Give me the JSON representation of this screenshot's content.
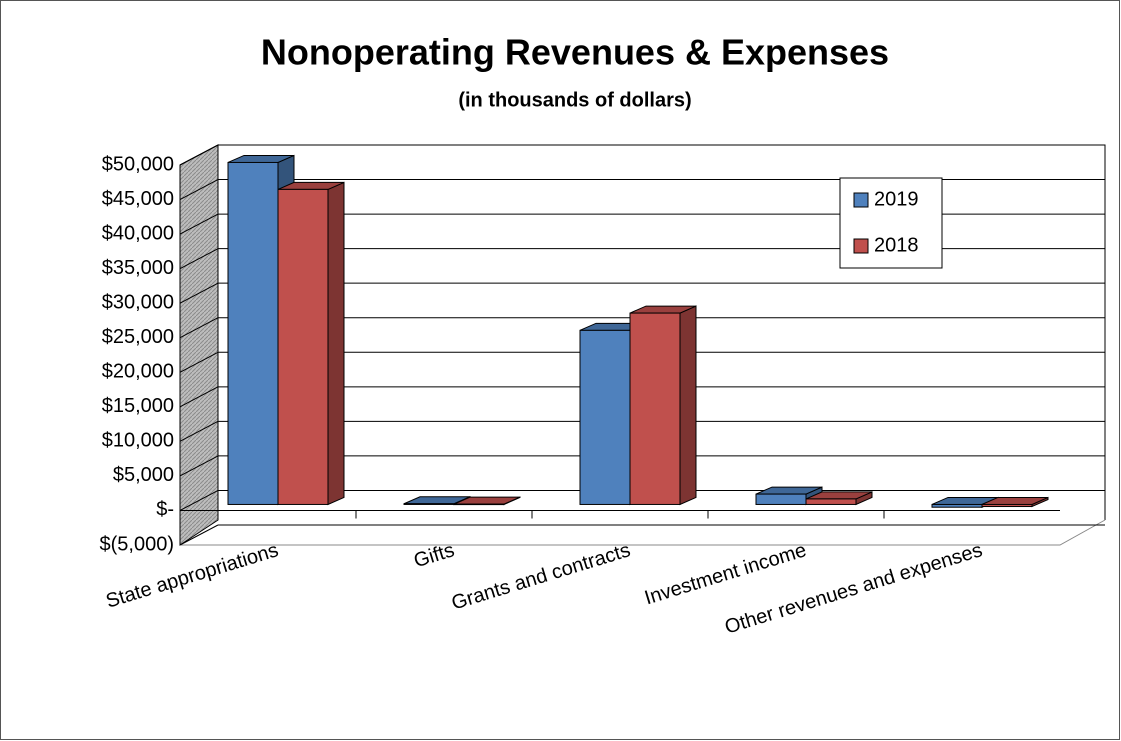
{
  "chart_data": {
    "type": "bar3d",
    "title": "Nonoperating Revenues & Expenses",
    "subtitle": "(in thousands of dollars)",
    "categories": [
      "State appropriations",
      "Gifts",
      "Grants  and contracts",
      "Investment income",
      "Other revenues and expenses"
    ],
    "series": [
      {
        "name": "2019",
        "color": "#4f81bd",
        "values": [
          49500,
          100,
          25200,
          1500,
          -400
        ]
      },
      {
        "name": "2018",
        "color": "#c0504d",
        "values": [
          45600,
          50,
          27700,
          800,
          -300
        ]
      }
    ],
    "ylim": [
      -5000,
      50000
    ],
    "yticks": [
      {
        "value": -5000,
        "label": "$(5,000)"
      },
      {
        "value": 0,
        "label": "$-"
      },
      {
        "value": 5000,
        "label": "$5,000"
      },
      {
        "value": 10000,
        "label": "$10,000"
      },
      {
        "value": 15000,
        "label": "$15,000"
      },
      {
        "value": 20000,
        "label": "$20,000"
      },
      {
        "value": 25000,
        "label": "$25,000"
      },
      {
        "value": 30000,
        "label": "$30,000"
      },
      {
        "value": 35000,
        "label": "$35,000"
      },
      {
        "value": 40000,
        "label": "$40,000"
      },
      {
        "value": 45000,
        "label": "$45,000"
      },
      {
        "value": 50000,
        "label": "$50,000"
      }
    ],
    "grid": true,
    "legend": "top-right"
  }
}
